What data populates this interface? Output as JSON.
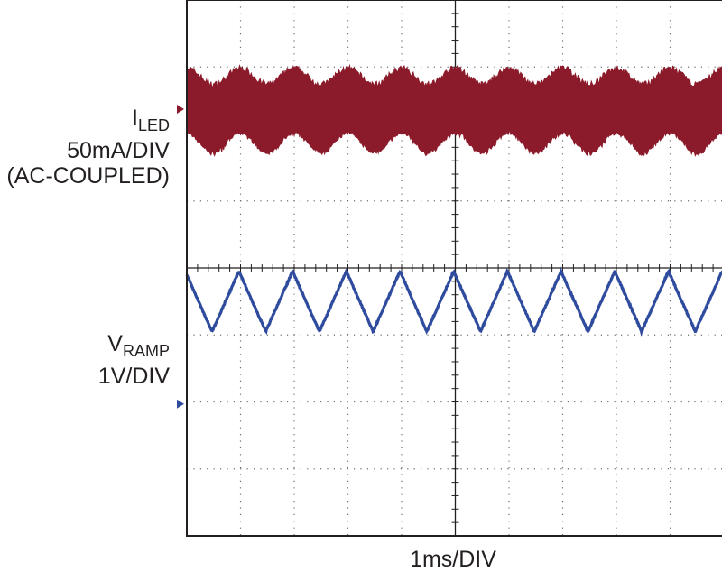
{
  "chart_data": {
    "type": "line",
    "title": "",
    "xlabel": "1ms/DIV",
    "grid": true,
    "divisions": {
      "x": 10,
      "y": 8
    },
    "series": [
      {
        "name_main": "I",
        "name_sub": "LED",
        "scale": "50mA/DIV",
        "note": "(AC-COUPLED)",
        "color": "#8b1a2a",
        "ground_marker_division": 1.63,
        "envelope": {
          "center_division": 1.66,
          "peak_to_peak_divisions": 0.95,
          "ripple_period_ms": 1.0,
          "ripple_amplitude_divisions": 0.15,
          "first_peak_ms": 0.0
        }
      },
      {
        "name_main": "V",
        "name_sub": "RAMP",
        "scale": "1V/DIV",
        "color": "#2e4b9e",
        "ground_marker_division": 6.03,
        "waveform": "triangle",
        "period_ms": 1.0,
        "high_division": 4.05,
        "low_division": 4.95,
        "first_peak_ms": 0.97,
        "start_ms": 0.0
      }
    ]
  }
}
